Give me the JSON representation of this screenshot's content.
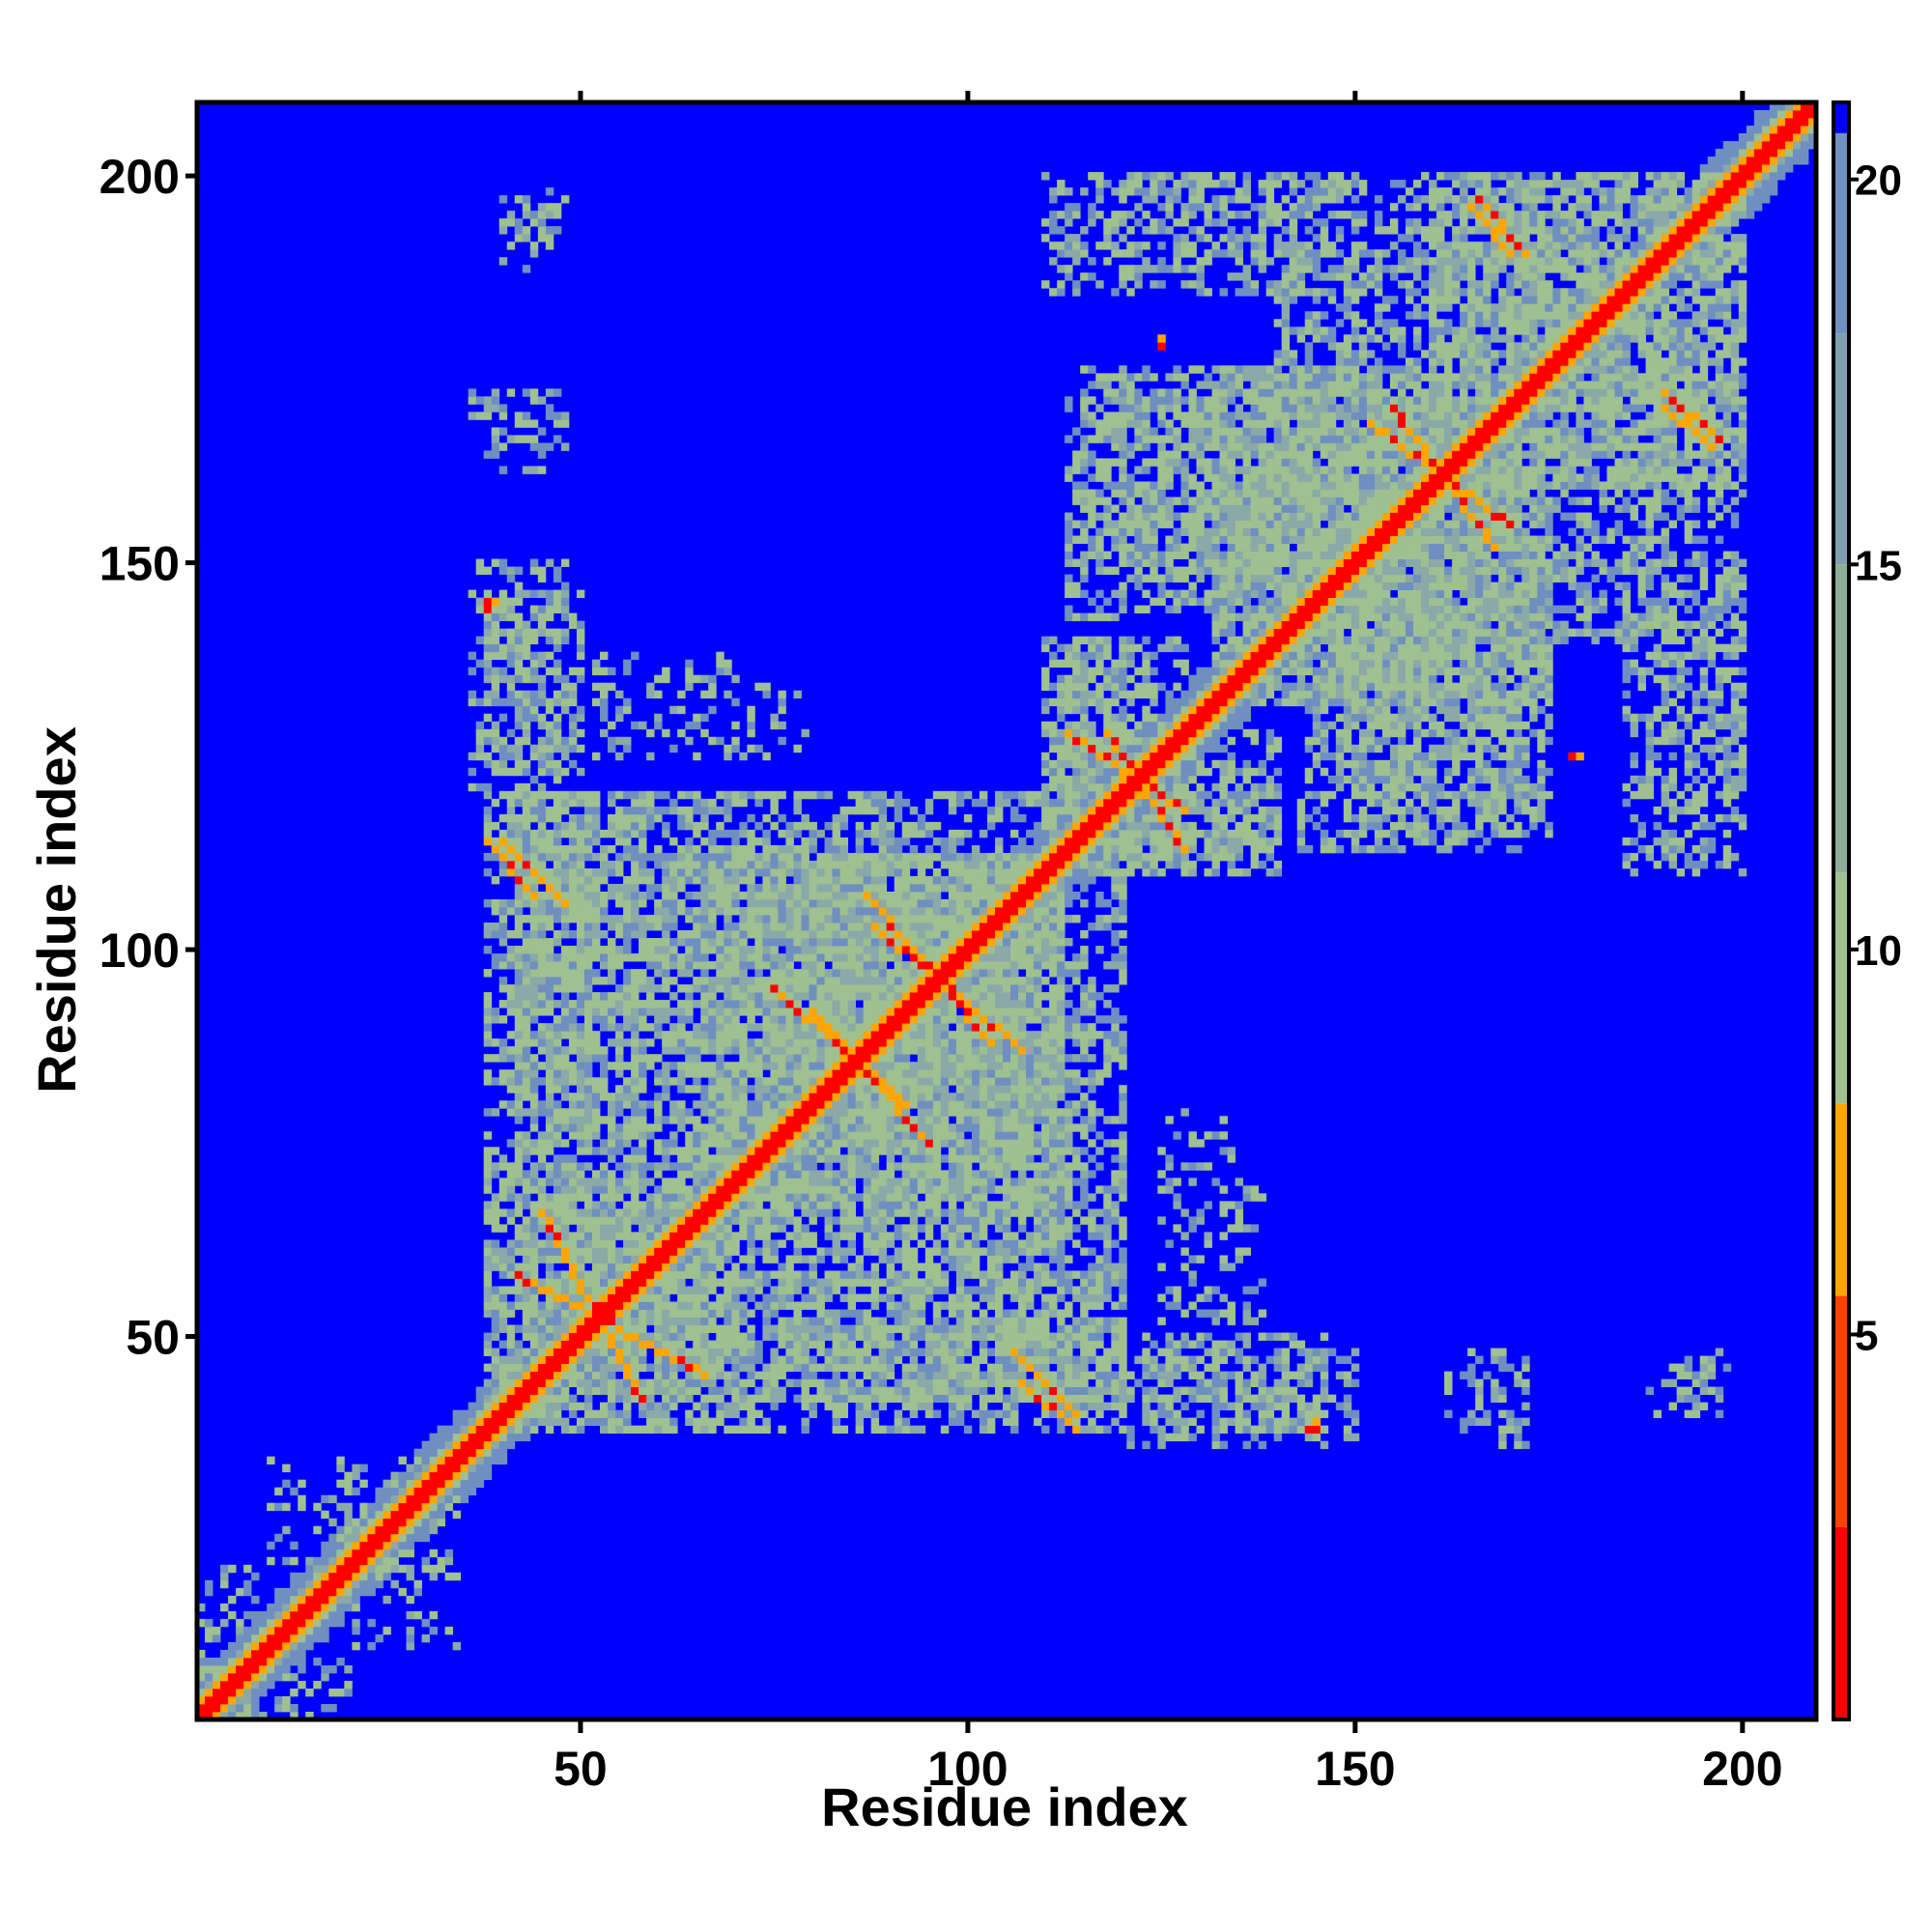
{
  "chart_data": {
    "type": "heatmap",
    "title": "",
    "xlabel": "Residue index",
    "ylabel": "Residue index",
    "n_residues": 209,
    "xlim": [
      1,
      209
    ],
    "ylim": [
      1,
      209
    ],
    "x_ticks": [
      50,
      100,
      150,
      200
    ],
    "y_ticks": [
      50,
      100,
      150,
      200
    ],
    "grid": false,
    "colorbar": {
      "ticks": [
        5,
        10,
        15,
        20
      ],
      "range": [
        0,
        21
      ],
      "placement": "right",
      "colors": {
        "contact": "#ff0000",
        "close": "#ffa500",
        "mid": "#9fc090",
        "far": "#6e8fc0",
        "background": "#0000ff"
      }
    },
    "features": {
      "diagonal": "residue i vs i, distance ~0",
      "domains": [
        {
          "range": [
            1,
            120
          ]
        },
        {
          "range": [
            115,
            209
          ]
        }
      ],
      "orange_segments": [
        {
          "from": [
            45,
            66
          ],
          "to": [
            58,
            42
          ]
        },
        {
          "from": [
            80,
            92
          ],
          "to": [
            95,
            75
          ]
        },
        {
          "from": [
            88,
            103
          ],
          "to": [
            107,
            87
          ]
        },
        {
          "from": [
            118,
            128
          ],
          "to": [
            128,
            113
          ]
        },
        {
          "from": [
            152,
            168
          ],
          "to": [
            170,
            155
          ]
        },
        {
          "from": [
            107,
            44
          ],
          "to": [
            114,
            38
          ]
        },
        {
          "from": [
            40,
            114
          ],
          "to": [
            48,
            106
          ]
        },
        {
          "from": [
            166,
            197
          ],
          "to": [
            172,
            190
          ]
        },
        {
          "from": [
            190,
            170
          ],
          "to": [
            196,
            165
          ]
        }
      ],
      "spots": [
        {
          "x": 144,
          "y": 38
        },
        {
          "x": 178,
          "y": 125
        },
        {
          "x": 38,
          "y": 145
        }
      ]
    }
  }
}
